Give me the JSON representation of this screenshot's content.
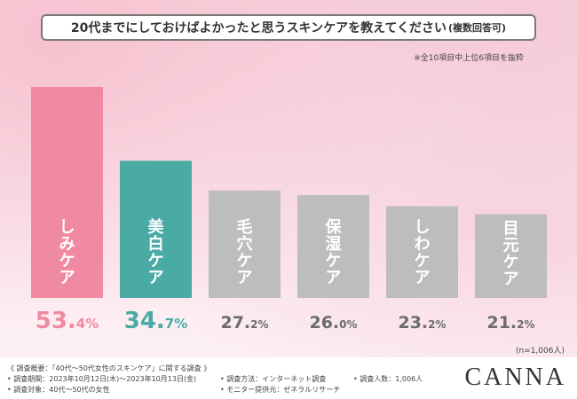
{
  "title": "20代までにしておけばよかったと思うスキンケアを教えてください",
  "title_suffix": "(複数回答可)",
  "note": "※全10項目中上位6項目を抜粋",
  "sample_size": "(n=1,006人)",
  "chart_data": {
    "type": "bar",
    "categories": [
      "しみケア",
      "美白ケア",
      "毛穴ケア",
      "保湿ケア",
      "しわケア",
      "目元ケア"
    ],
    "values": [
      53.4,
      34.7,
      27.2,
      26.0,
      23.2,
      21.2
    ],
    "value_labels": [
      {
        "int": "53.",
        "dec": "4%"
      },
      {
        "int": "34.",
        "dec": "7%"
      },
      {
        "int": "27.",
        "dec": "2%"
      },
      {
        "int": "26.",
        "dec": "0%"
      },
      {
        "int": "23.",
        "dec": "2%"
      },
      {
        "int": "21.",
        "dec": "2%"
      }
    ],
    "unit": "%",
    "bar_colors": [
      "#f08aa2",
      "#4aaba5",
      "#bdbdbd",
      "#bdbdbd",
      "#bdbdbd",
      "#bdbdbd"
    ],
    "label_colors": [
      "#f08aa2",
      "#4aaba5",
      "#6b6b6b",
      "#6b6b6b",
      "#6b6b6b",
      "#6b6b6b"
    ],
    "ylim": [
      0,
      53.4
    ],
    "grid": false
  },
  "footer": {
    "overview": "《 調査概要：「40代～50代女性のスキンケア」に関する調査 》",
    "period": "• 調査期間：2023年10月12日(木)～2023年10月13日(金)",
    "target": "• 調査対象：40代～50代の女性",
    "method": "• 調査方法：インターネット調査",
    "provider": "• モニター提供元：ゼネラルリサーチ",
    "count": "• 調査人数：1,006人"
  },
  "logo": "CANNA"
}
